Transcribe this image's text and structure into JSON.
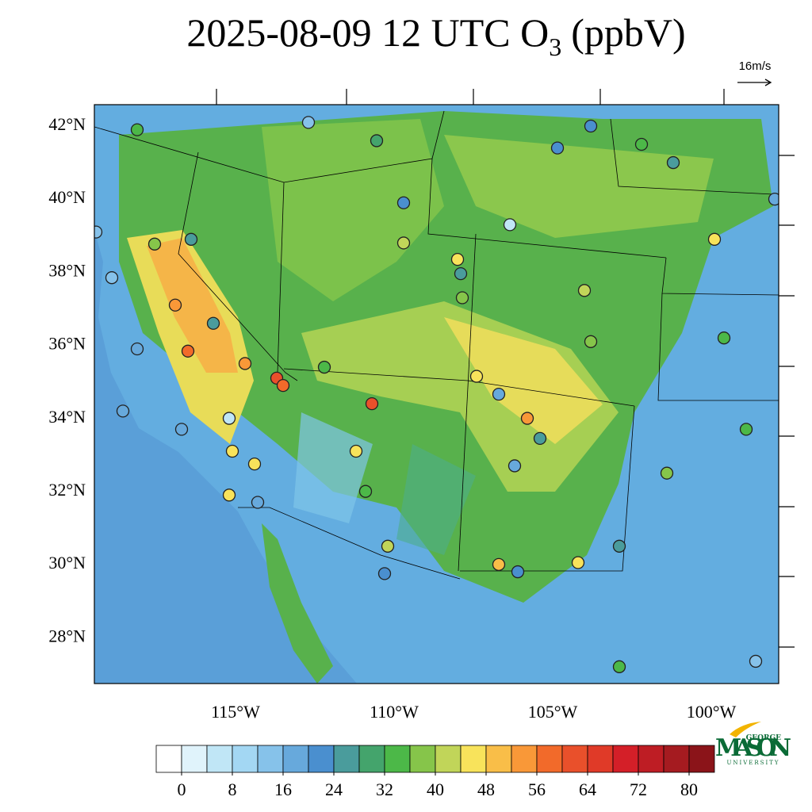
{
  "title": {
    "before": "2025-08-09 12 UTC O",
    "subscript": "3",
    "after": "(ppbV)"
  },
  "vector_reference": "16m/s",
  "map": {
    "lat_labels": [
      "42°N",
      "40°N",
      "38°N",
      "36°N",
      "34°N",
      "32°N",
      "30°N",
      "28°N"
    ],
    "lon_labels": [
      "115°W",
      "110°W",
      "105°W",
      "100°W"
    ]
  },
  "stations": {
    "lon": [
      -116.5,
      -116.9,
      -110.7,
      -113.7,
      -113.5,
      -105.8,
      -114.7,
      -115.1,
      -114.4,
      -115.2,
      -118.1,
      -118.1,
      -118.9,
      -118.55,
      -116.7,
      -112.7,
      -110.55,
      -109.7,
      -109.7,
      -107.9,
      -108.0,
      -106.35,
      -103.8,
      -104.85,
      -102.2,
      -101.2,
      -99.9,
      -104.0,
      -99.6,
      -98.9,
      -101.4,
      -112.2,
      -111.2,
      -110.9,
      -110.3,
      -110.2,
      -106.7,
      -106.1,
      -104.2,
      -102.9,
      -98.0,
      -98.6,
      -102.9,
      -106.2,
      -105.4,
      -107.4,
      -106.7,
      -103.8,
      -115.2,
      -115.7,
      -117.55,
      -116.4,
      -119.4,
      -114.3,
      -107.85
    ],
    "lat": [
      35.84,
      37.1,
      34.4,
      35.1,
      34.9,
      34.0,
      35.5,
      33.1,
      32.75,
      31.9,
      41.9,
      35.9,
      37.85,
      34.2,
      33.7,
      42.1,
      41.6,
      39.9,
      38.8,
      37.96,
      38.35,
      39.3,
      42.0,
      41.4,
      41.5,
      41.0,
      38.9,
      37.5,
      36.2,
      33.7,
      32.5,
      35.4,
      33.1,
      32.0,
      29.75,
      30.5,
      30.0,
      29.8,
      30.05,
      30.5,
      40.0,
      27.35,
      27.2,
      32.7,
      33.45,
      35.15,
      34.66,
      36.1,
      34.0,
      36.6,
      38.77,
      38.9,
      39.1,
      31.7,
      37.3
    ],
    "values": [
      56,
      52,
      62,
      60,
      58,
      52,
      52,
      46,
      46,
      46,
      34,
      16,
      14,
      16,
      18,
      14,
      30,
      22,
      40,
      26,
      44,
      4,
      22,
      22,
      32,
      24,
      44,
      42,
      32,
      34,
      36,
      32,
      44,
      34,
      22,
      40,
      50,
      22,
      46,
      24,
      18,
      14,
      32,
      18,
      24,
      46,
      18,
      36,
      6,
      24,
      36,
      24,
      14,
      16,
      38
    ]
  },
  "colorbar": {
    "ticks": [
      0,
      8,
      16,
      24,
      32,
      40,
      48,
      56,
      64,
      72,
      80
    ],
    "colors": [
      "#ffffff",
      "#e0f3fb",
      "#c0e6f6",
      "#a3d7f3",
      "#86c2ea",
      "#67a9dc",
      "#4a8fcf",
      "#4a9c9c",
      "#44a46c",
      "#4cb848",
      "#86c54a",
      "#c1d559",
      "#f8e35b",
      "#f9be48",
      "#f99838",
      "#f26a2a",
      "#e9502b",
      "#e03a28",
      "#d41f28",
      "#be1d24",
      "#a51b20",
      "#8b1419"
    ]
  },
  "logo": {
    "top": "GEORGE",
    "main": "MASON",
    "bottom": "UNIVERSITY"
  }
}
